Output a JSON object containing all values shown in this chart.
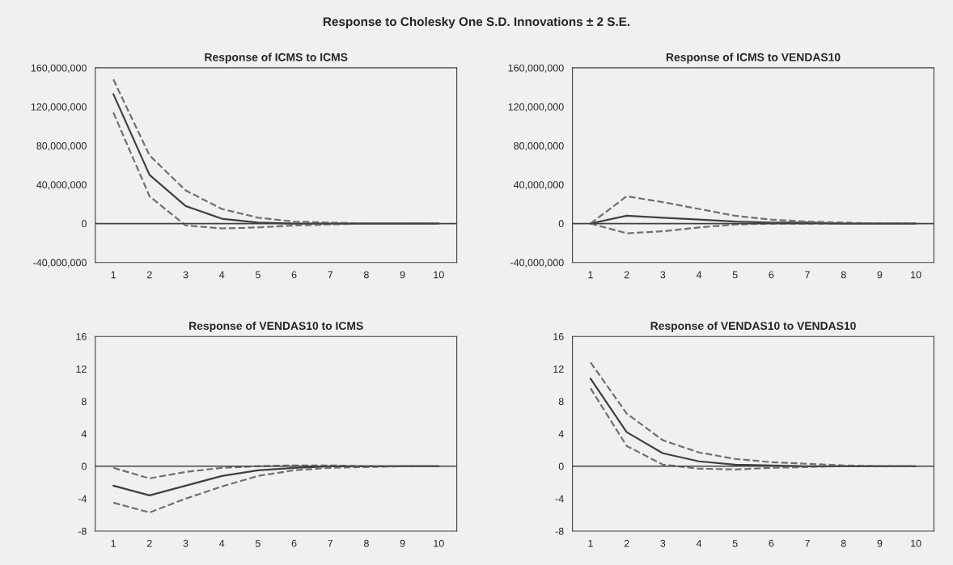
{
  "chart_data": [
    {
      "type": "line",
      "title": "Response of ICMS to ICMS",
      "annotations": [
        "Response to Cholesky One S.D. Innovations ± 2 S.E."
      ],
      "categories": [
        "1",
        "2",
        "3",
        "4",
        "5",
        "6",
        "7",
        "8",
        "9",
        "10"
      ],
      "ylim": [
        -40000000,
        160000000
      ],
      "yticks": [
        {
          "value": -40000000,
          "label": "-40,000,000"
        },
        {
          "value": 0,
          "label": "0"
        },
        {
          "value": 40000000,
          "label": "40,000,000"
        },
        {
          "value": 80000000,
          "label": "80,000,000"
        },
        {
          "value": 120000000,
          "label": "120,000,000"
        },
        {
          "value": 160000000,
          "label": "160,000,000"
        }
      ],
      "grid": false,
      "legend": false,
      "ref_lines": [
        {
          "axis": "y",
          "value": 0,
          "color": "#404040"
        }
      ],
      "series": [
        {
          "color": "#404040",
          "line_style": "solid",
          "values": [
            133000000,
            50000000,
            18000000,
            5000000,
            1000000,
            0,
            0,
            0,
            0,
            0
          ]
        },
        {
          "color": "#707070",
          "line_style": "dashed",
          "values": [
            148000000,
            70000000,
            34000000,
            15000000,
            6000000,
            2000000,
            1000000,
            0,
            0,
            0
          ]
        },
        {
          "color": "#707070",
          "line_style": "dashed",
          "values": [
            114000000,
            28000000,
            -2000000,
            -5000000,
            -4000000,
            -2000000,
            -1000000,
            0,
            0,
            0
          ]
        }
      ]
    },
    {
      "type": "line",
      "title": "Response of ICMS to VENDAS10",
      "categories": [
        "1",
        "2",
        "3",
        "4",
        "5",
        "6",
        "7",
        "8",
        "9",
        "10"
      ],
      "ylim": [
        -40000000,
        160000000
      ],
      "yticks": [
        {
          "value": -40000000,
          "label": "-40,000,000"
        },
        {
          "value": 0,
          "label": "0"
        },
        {
          "value": 40000000,
          "label": "40,000,000"
        },
        {
          "value": 80000000,
          "label": "80,000,000"
        },
        {
          "value": 120000000,
          "label": "120,000,000"
        },
        {
          "value": 160000000,
          "label": "160,000,000"
        }
      ],
      "grid": false,
      "legend": false,
      "ref_lines": [
        {
          "axis": "y",
          "value": 0,
          "color": "#404040"
        }
      ],
      "series": [
        {
          "color": "#404040",
          "line_style": "solid",
          "values": [
            0,
            8000000,
            6000000,
            4000000,
            2000000,
            1000000,
            1000000,
            0,
            0,
            0
          ]
        },
        {
          "color": "#707070",
          "line_style": "dashed",
          "values": [
            0,
            28000000,
            22000000,
            15000000,
            8000000,
            4000000,
            2000000,
            1000000,
            0,
            0
          ]
        },
        {
          "color": "#707070",
          "line_style": "dashed",
          "values": [
            0,
            -10000000,
            -8000000,
            -4000000,
            -1000000,
            0,
            0,
            0,
            0,
            0
          ]
        }
      ]
    },
    {
      "type": "line",
      "title": "Response of VENDAS10 to ICMS",
      "categories": [
        "1",
        "2",
        "3",
        "4",
        "5",
        "6",
        "7",
        "8",
        "9",
        "10"
      ],
      "ylim": [
        -8,
        16
      ],
      "yticks": [
        -8,
        -4,
        0,
        4,
        8,
        12,
        16
      ],
      "grid": false,
      "legend": false,
      "ref_lines": [
        {
          "axis": "y",
          "value": 0,
          "color": "#404040"
        }
      ],
      "series": [
        {
          "color": "#404040",
          "line_style": "solid",
          "values": [
            -2.4,
            -3.6,
            -2.4,
            -1.2,
            -0.5,
            -0.2,
            0,
            0,
            0,
            0
          ]
        },
        {
          "color": "#707070",
          "line_style": "dashed",
          "values": [
            -0.2,
            -1.5,
            -0.7,
            -0.2,
            0,
            0.1,
            0.1,
            0,
            0,
            0
          ]
        },
        {
          "color": "#707070",
          "line_style": "dashed",
          "values": [
            -4.5,
            -5.7,
            -4,
            -2.5,
            -1.2,
            -0.5,
            -0.2,
            -0.1,
            0,
            0
          ]
        }
      ]
    },
    {
      "type": "line",
      "title": "Response of VENDAS10 to VENDAS10",
      "categories": [
        "1",
        "2",
        "3",
        "4",
        "5",
        "6",
        "7",
        "8",
        "9",
        "10"
      ],
      "ylim": [
        -8,
        16
      ],
      "yticks": [
        -8,
        -4,
        0,
        4,
        8,
        12,
        16
      ],
      "grid": false,
      "legend": false,
      "ref_lines": [
        {
          "axis": "y",
          "value": 0,
          "color": "#404040"
        }
      ],
      "series": [
        {
          "color": "#404040",
          "line_style": "solid",
          "values": [
            10.8,
            4.2,
            1.6,
            0.6,
            0.2,
            0.1,
            0,
            0,
            0,
            0
          ]
        },
        {
          "color": "#707070",
          "line_style": "dashed",
          "values": [
            12.8,
            6.5,
            3.2,
            1.7,
            0.9,
            0.5,
            0.3,
            0.1,
            0,
            0
          ]
        },
        {
          "color": "#707070",
          "line_style": "dashed",
          "values": [
            9.6,
            2.5,
            0.2,
            -0.3,
            -0.4,
            -0.2,
            -0.1,
            0,
            0,
            0
          ]
        }
      ]
    }
  ]
}
